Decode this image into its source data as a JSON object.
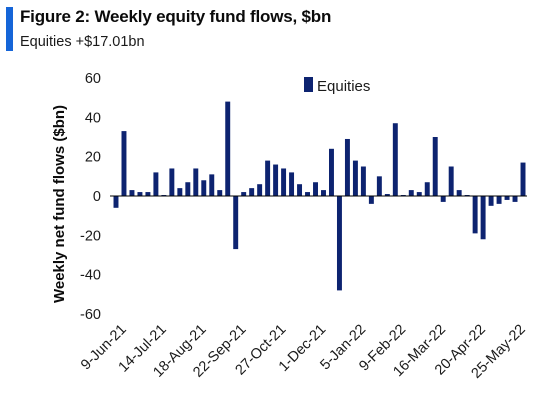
{
  "header": {
    "title": "Figure 2: Weekly equity fund flows, $bn",
    "subtitle": "Equities +$17.01bn"
  },
  "colors": {
    "accent": "#1565d8",
    "series": "#0d2370",
    "axis": "#000000"
  },
  "chart_data": {
    "type": "bar",
    "ylabel": "Weekly net fund flows ($bn)",
    "xlabel": "",
    "ylim": [
      -60,
      60
    ],
    "yticks": [
      60,
      40,
      20,
      0,
      -20,
      -40,
      -60
    ],
    "legend": "top-right",
    "grid": false,
    "x_tick_labels": [
      "9-Jun-21",
      "14-Jul-21",
      "18-Aug-21",
      "22-Sep-21",
      "27-Oct-21",
      "1-Dec-21",
      "5-Jan-22",
      "9-Feb-22",
      "16-Mar-22",
      "20-Apr-22",
      "25-May-22"
    ],
    "x_tick_every": 5,
    "series": [
      {
        "name": "Equities",
        "values": [
          -6,
          33,
          3,
          2,
          2,
          12,
          0.5,
          14,
          4,
          7,
          14,
          8,
          11,
          3,
          48,
          -27,
          2,
          4,
          6,
          18,
          16,
          14,
          12,
          6,
          2,
          7,
          3,
          24,
          -48,
          29,
          18,
          15,
          -4,
          10,
          1,
          37,
          0.5,
          3,
          2,
          7,
          30,
          -3,
          15,
          3,
          0.5,
          -19,
          -22,
          -5,
          -4,
          -2,
          -3,
          17
        ]
      }
    ]
  }
}
